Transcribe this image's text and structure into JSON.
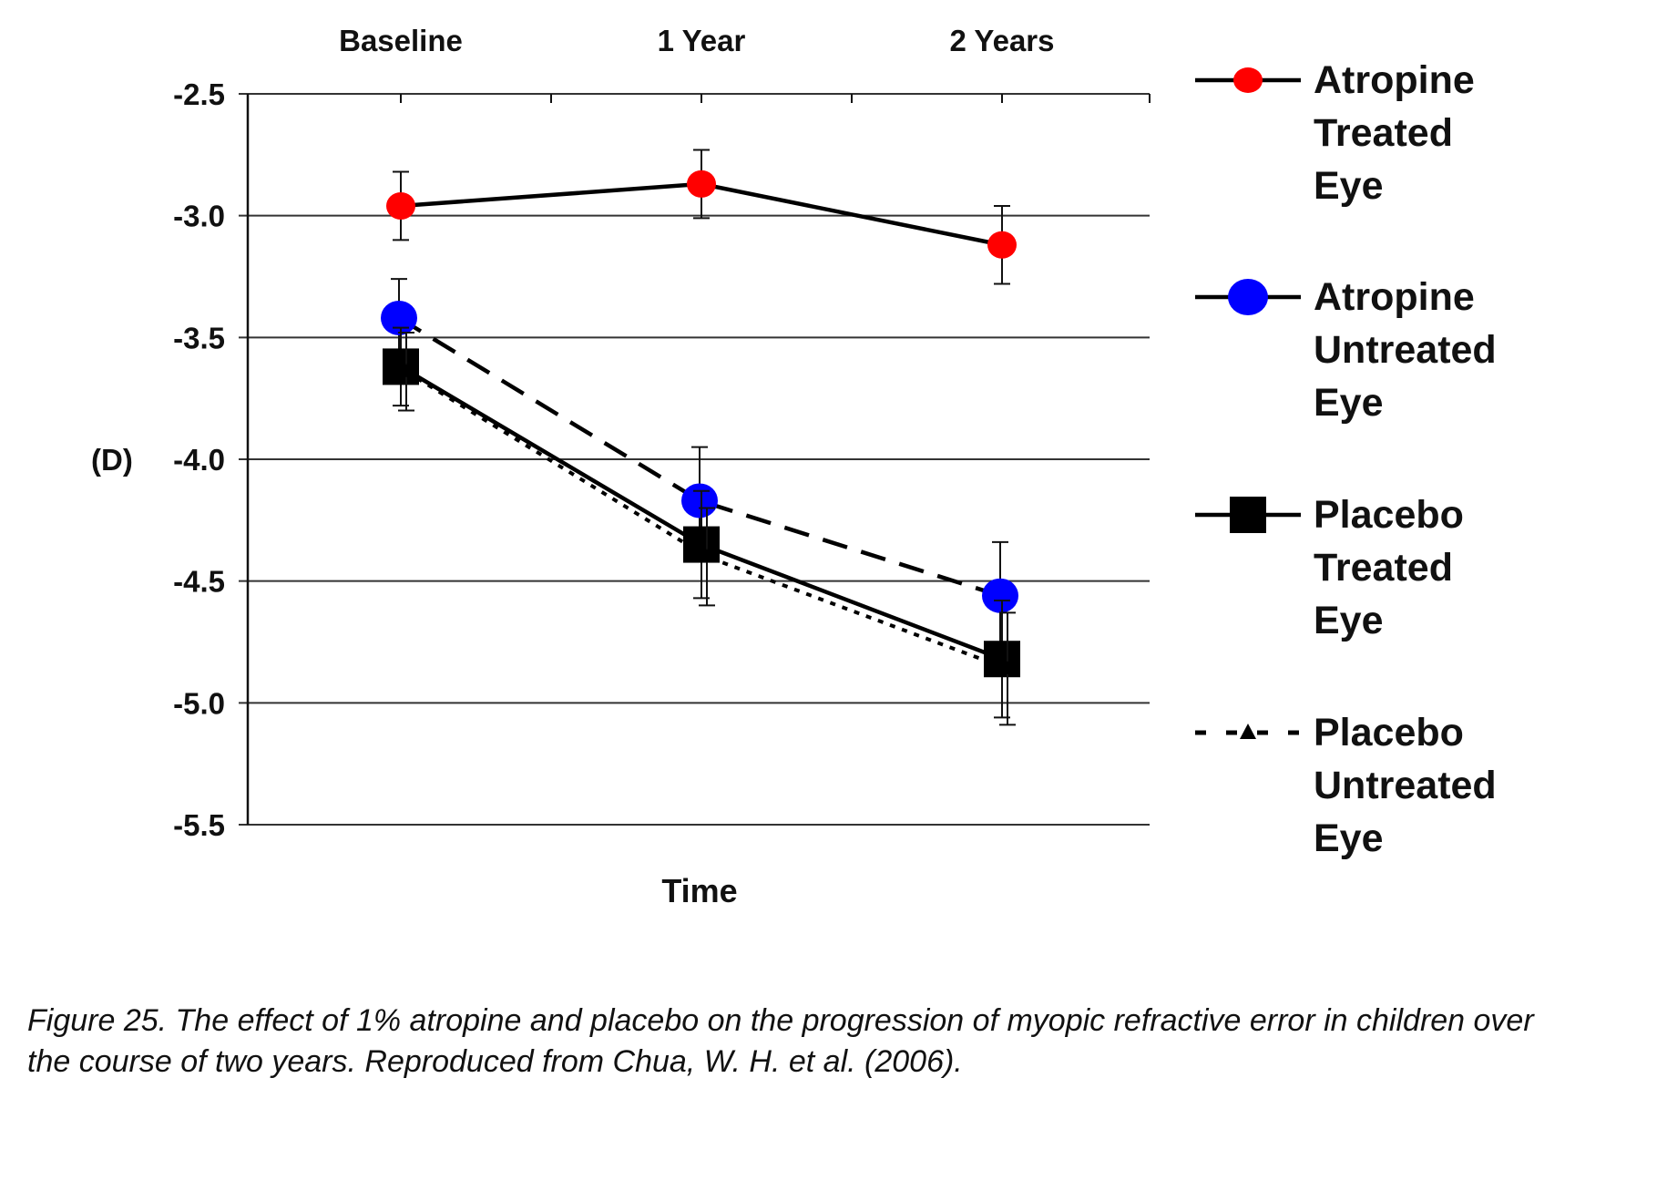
{
  "chart_data": {
    "type": "line",
    "title": "",
    "xlabel": "Time",
    "ylabel": "(D)",
    "categories": [
      "Baseline",
      "1 Year",
      "2 Years"
    ],
    "ylim": [
      -5.5,
      -2.5
    ],
    "yticks": [
      -2.5,
      -3.0,
      -3.5,
      -4.0,
      -4.5,
      -5.0,
      -5.5
    ],
    "ytick_labels": [
      "-2.5",
      "-3.0",
      "-3.5",
      "-4.0",
      "-4.5",
      "-5.0",
      "-5.5"
    ],
    "grid": true,
    "legend_position": "right",
    "series": [
      {
        "name": "Atropine Treated Eye",
        "legend_lines": [
          "Atropine",
          "Treated",
          "Eye"
        ],
        "values": [
          -2.96,
          -2.87,
          -3.12
        ],
        "errors": [
          0.14,
          0.14,
          0.16
        ],
        "color": "#ff0000",
        "line_color": "#000000",
        "marker": "circle",
        "marker_size": "small",
        "line_style": "solid"
      },
      {
        "name": "Atropine Untreated Eye",
        "legend_lines": [
          "Atropine",
          "Untreated",
          "Eye"
        ],
        "values": [
          -3.42,
          -4.17,
          -4.56
        ],
        "errors": [
          0.16,
          0.22,
          0.22
        ],
        "color": "#0000ff",
        "line_color": "#000000",
        "marker": "circle",
        "marker_size": "large",
        "line_style": "dashed"
      },
      {
        "name": "Placebo Treated Eye",
        "legend_lines": [
          "Placebo",
          "Treated",
          "Eye"
        ],
        "values": [
          -3.62,
          -4.35,
          -4.82
        ],
        "errors": [
          0.16,
          0.22,
          0.24
        ],
        "color": "#000000",
        "line_color": "#000000",
        "marker": "square",
        "line_style": "solid"
      },
      {
        "name": "Placebo Untreated Eye",
        "legend_lines": [
          "Placebo",
          "Untreated",
          "Eye"
        ],
        "values": [
          -3.64,
          -4.4,
          -4.86
        ],
        "errors": [
          0.16,
          0.2,
          0.23
        ],
        "color": "#000000",
        "line_color": "#000000",
        "marker": "triangle",
        "line_style": "dotted"
      }
    ]
  },
  "caption": {
    "line1": "Figure 25. The effect of 1% atropine and placebo on the progression of myopic refractive error in children over",
    "line2": "the course of two years. Reproduced from Chua, W. H. et al. (2006)."
  }
}
